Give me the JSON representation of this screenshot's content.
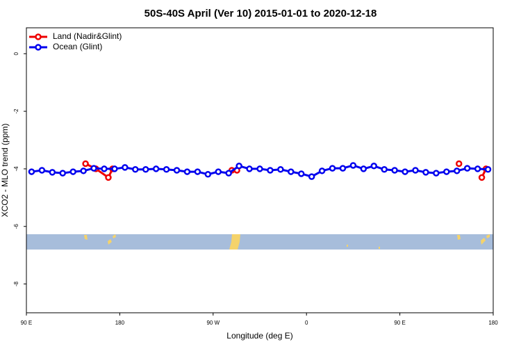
{
  "chart_data": {
    "type": "line",
    "title": "50S-40S April (Ver 10)   2015-01-01 to 2020-12-18",
    "x_label": "Longitude (deg E)",
    "y_label": "XCO2 - MLO trend (ppm)",
    "xlim": [
      90,
      540
    ],
    "ylim": [
      -9,
      0.9
    ],
    "xticks": [
      {
        "value": 90,
        "label": "90 E"
      },
      180,
      {
        "value": 270,
        "label": "90 W"
      },
      {
        "value": 360,
        "label": "0"
      },
      {
        "value": 450,
        "label": "90 E"
      },
      {
        "value": 540,
        "label": "180"
      }
    ],
    "yticks": [
      0,
      -2,
      -4,
      -6,
      -8
    ],
    "legend": "top-left",
    "series": [
      {
        "name": "Land (Nadir&Glint)",
        "color": "#ee0000",
        "x": [
          147,
          157,
          169,
          173,
          280,
          288,
          293,
          400,
          507,
          520,
          529,
          533
        ],
        "values": [
          -3.82,
          -4.0,
          -4.3,
          -4.0,
          null,
          -4.05,
          -4.05,
          null,
          -3.82,
          null,
          -4.3,
          -4.0
        ]
      },
      {
        "name": "Ocean (Glint)",
        "color": "#0000ee",
        "x": [
          95,
          105,
          115,
          125,
          135,
          145,
          155,
          165,
          175,
          185,
          195,
          205,
          215,
          225,
          235,
          245,
          255,
          265,
          275,
          285,
          295,
          305,
          315,
          325,
          335,
          345,
          355,
          365,
          375,
          385,
          395,
          405,
          415,
          425,
          435,
          445,
          455,
          465,
          475,
          485,
          495,
          505,
          515,
          525,
          535
        ],
        "values": [
          -4.1,
          -4.05,
          -4.12,
          -4.15,
          -4.1,
          -4.07,
          -3.98,
          -4.0,
          -4.0,
          -3.95,
          -4.02,
          -4.02,
          -4.0,
          -4.02,
          -4.05,
          -4.1,
          -4.1,
          -4.19,
          -4.1,
          -4.15,
          -3.9,
          -4.0,
          -4.0,
          -4.05,
          -4.02,
          -4.1,
          -4.17,
          -4.27,
          -4.07,
          -3.98,
          -3.98,
          -3.88,
          -4.0,
          -3.9,
          -4.02,
          -4.05,
          -4.1,
          -4.05,
          -4.12,
          -4.15,
          -4.1,
          -4.07,
          -3.98,
          -4.0,
          -4.02
        ]
      }
    ]
  }
}
